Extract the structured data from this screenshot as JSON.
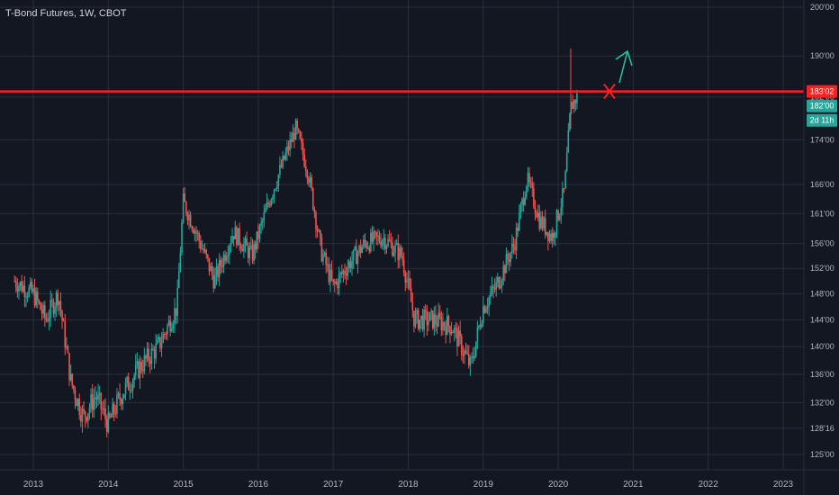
{
  "header": {
    "title": "T-Bond Futures, 1W, CBOT"
  },
  "colors": {
    "background": "#131722",
    "grid": "#2a2e39",
    "up": "#26a69a",
    "down": "#ef5350",
    "resistance": "#ff1f1f",
    "arrow": "#26c6a0",
    "axis_text": "#b2b5be"
  },
  "chart_data": {
    "type": "candlestick",
    "title": "T-Bond Futures, 1W, CBOT",
    "x_ticks": [
      "2013",
      "2014",
      "2015",
      "2016",
      "2017",
      "2018",
      "2019",
      "2020",
      "2021",
      "2022",
      "2023"
    ],
    "y_ticks": [
      "125'00",
      "128'16",
      "132'00",
      "136'00",
      "140'00",
      "144'00",
      "148'00",
      "152'00",
      "156'00",
      "161'00",
      "166'00",
      "174'00",
      "182'00",
      "190'00",
      "200'00"
    ],
    "y_scale": "log",
    "grid": true,
    "price_series": [
      {
        "date": "2012-10",
        "value": 150
      },
      {
        "date": "2013-01",
        "value": 148
      },
      {
        "date": "2013-03",
        "value": 144
      },
      {
        "date": "2013-05",
        "value": 148
      },
      {
        "date": "2013-07",
        "value": 135
      },
      {
        "date": "2013-09",
        "value": 130
      },
      {
        "date": "2013-11",
        "value": 133
      },
      {
        "date": "2014-01",
        "value": 129
      },
      {
        "date": "2014-03",
        "value": 133
      },
      {
        "date": "2014-06",
        "value": 137
      },
      {
        "date": "2014-09",
        "value": 140
      },
      {
        "date": "2014-12",
        "value": 146
      },
      {
        "date": "2015-01",
        "value": 163
      },
      {
        "date": "2015-03",
        "value": 158
      },
      {
        "date": "2015-06",
        "value": 150
      },
      {
        "date": "2015-09",
        "value": 158
      },
      {
        "date": "2015-12",
        "value": 154
      },
      {
        "date": "2016-03",
        "value": 164
      },
      {
        "date": "2016-07",
        "value": 176
      },
      {
        "date": "2016-09",
        "value": 168
      },
      {
        "date": "2016-11",
        "value": 155
      },
      {
        "date": "2017-01",
        "value": 149
      },
      {
        "date": "2017-03",
        "value": 152
      },
      {
        "date": "2017-06",
        "value": 156
      },
      {
        "date": "2017-09",
        "value": 157
      },
      {
        "date": "2017-12",
        "value": 154
      },
      {
        "date": "2018-02",
        "value": 144
      },
      {
        "date": "2018-05",
        "value": 144
      },
      {
        "date": "2018-08",
        "value": 143
      },
      {
        "date": "2018-11",
        "value": 137
      },
      {
        "date": "2019-01",
        "value": 146
      },
      {
        "date": "2019-03",
        "value": 149
      },
      {
        "date": "2019-06",
        "value": 156
      },
      {
        "date": "2019-08",
        "value": 167
      },
      {
        "date": "2019-10",
        "value": 160
      },
      {
        "date": "2019-12",
        "value": 157
      },
      {
        "date": "2020-02",
        "value": 165
      },
      {
        "date": "2020-03",
        "value": 180
      },
      {
        "date": "2020-04",
        "value": 182
      }
    ],
    "resistance_level": {
      "label": "183'02",
      "value": 183.06
    },
    "last_price": {
      "label": "182'00",
      "value": 182.0
    },
    "countdown": "2d 11h",
    "annotations": [
      "rejection cross at resistance",
      "breakout arrow pointing up"
    ]
  }
}
